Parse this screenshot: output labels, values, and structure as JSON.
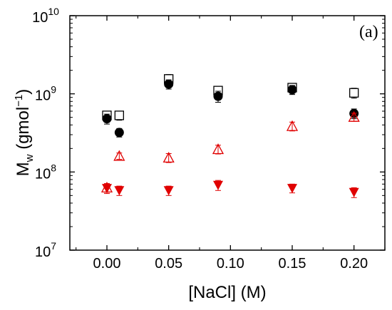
{
  "chart_data": {
    "type": "scatter",
    "panel_label": "(a)",
    "xlabel": "[NaCl] (M)",
    "ylabel_main": "M",
    "ylabel_sub": "w",
    "ylabel_rest": " (gmol",
    "ylabel_sup": "−1",
    "ylabel_close": ")",
    "xlim": [
      -0.03,
      0.225
    ],
    "ylim": [
      10000000,
      10000000000
    ],
    "yscale": "log",
    "xticks": [
      0.0,
      0.05,
      0.1,
      0.15,
      0.2
    ],
    "xtick_labels": [
      "0.00",
      "0.05",
      "0.10",
      "0.15",
      "0.20"
    ],
    "yticks": [
      10000000,
      100000000,
      1000000000,
      10000000000
    ],
    "ytick_base": "10",
    "ytick_exponents": [
      "7",
      "8",
      "9",
      "10"
    ],
    "grid": false,
    "series": [
      {
        "marker": "square-open",
        "color": "#000000",
        "points": [
          {
            "x": 0.0,
            "y": 530000000,
            "err": 70000000
          },
          {
            "x": 0.01,
            "y": 530000000,
            "err": 70000000
          },
          {
            "x": 0.05,
            "y": 1550000000,
            "err": 220000000
          },
          {
            "x": 0.09,
            "y": 1100000000,
            "err": 150000000
          },
          {
            "x": 0.15,
            "y": 1200000000,
            "err": 150000000
          },
          {
            "x": 0.2,
            "y": 1030000000,
            "err": 150000000
          }
        ]
      },
      {
        "marker": "circle-filled",
        "color": "#000000",
        "points": [
          {
            "x": 0.0,
            "y": 480000000,
            "err": 70000000
          },
          {
            "x": 0.01,
            "y": 320000000,
            "err": 40000000
          },
          {
            "x": 0.05,
            "y": 1330000000,
            "err": 180000000
          },
          {
            "x": 0.09,
            "y": 930000000,
            "err": 150000000
          },
          {
            "x": 0.15,
            "y": 1130000000,
            "err": 150000000
          },
          {
            "x": 0.2,
            "y": 560000000,
            "err": 80000000
          }
        ]
      },
      {
        "marker": "triangle-up-open",
        "color": "#e00000",
        "points": [
          {
            "x": 0.0,
            "y": 63000000,
            "err": 8000000
          },
          {
            "x": 0.01,
            "y": 160000000,
            "err": 15000000
          },
          {
            "x": 0.05,
            "y": 152000000,
            "err": 20000000
          },
          {
            "x": 0.09,
            "y": 195000000,
            "err": 25000000
          },
          {
            "x": 0.15,
            "y": 385000000,
            "err": 50000000
          },
          {
            "x": 0.2,
            "y": 505000000,
            "err": 60000000
          }
        ]
      },
      {
        "marker": "triangle-down-filled",
        "color": "#e00000",
        "points": [
          {
            "x": 0.0,
            "y": 62000000,
            "err": 9000000
          },
          {
            "x": 0.01,
            "y": 58000000,
            "err": 8000000
          },
          {
            "x": 0.05,
            "y": 58000000,
            "err": 8000000
          },
          {
            "x": 0.09,
            "y": 68000000,
            "err": 10000000
          },
          {
            "x": 0.15,
            "y": 62000000,
            "err": 8000000
          },
          {
            "x": 0.2,
            "y": 55000000,
            "err": 8000000
          }
        ]
      }
    ]
  }
}
